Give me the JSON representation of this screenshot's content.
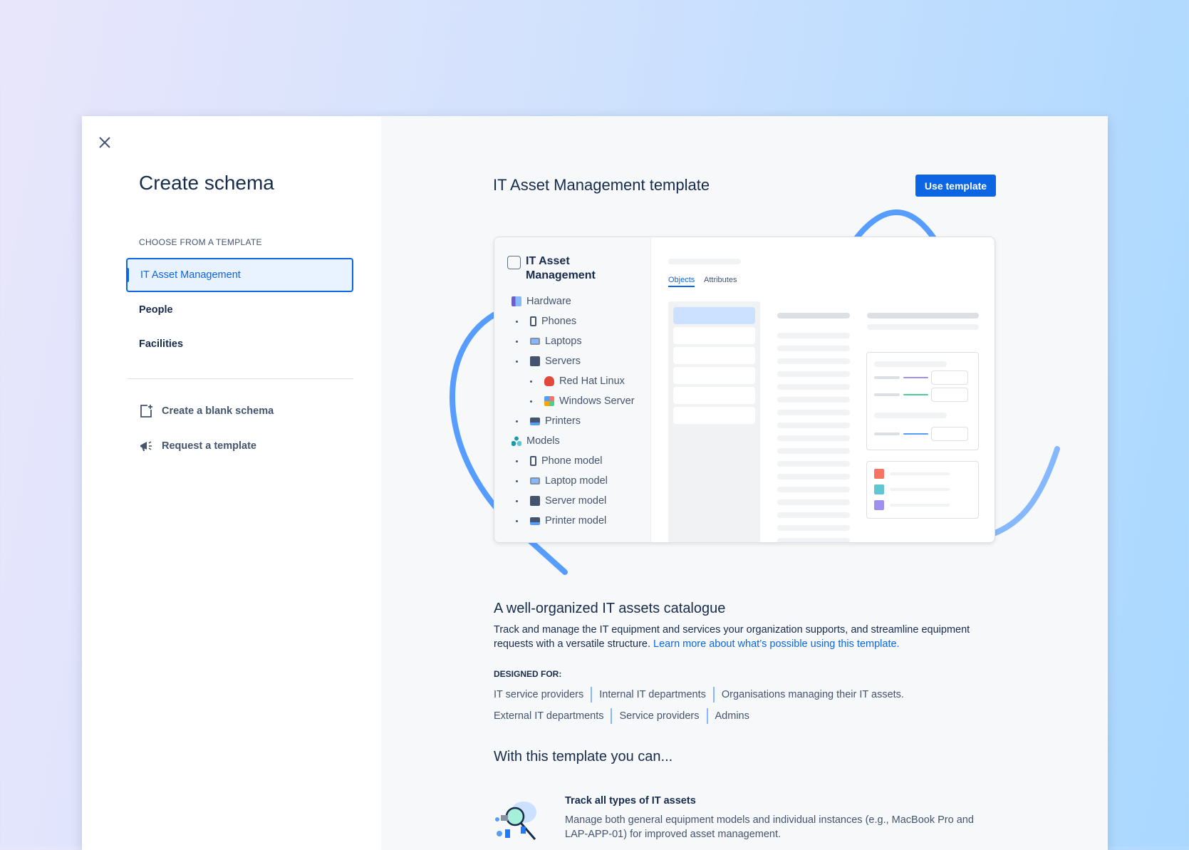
{
  "sidebar": {
    "title": "Create schema",
    "section_label": "CHOOSE FROM A TEMPLATE",
    "templates": [
      {
        "label": "IT Asset Management",
        "selected": true
      },
      {
        "label": "People",
        "selected": false
      },
      {
        "label": "Facilities",
        "selected": false
      }
    ],
    "actions": [
      {
        "label": "Create a blank schema",
        "icon": "add-page-icon"
      },
      {
        "label": "Request a template",
        "icon": "megaphone-icon"
      }
    ]
  },
  "main": {
    "title": "IT Asset Management template",
    "use_button": "Use template",
    "preview": {
      "title": "IT Asset Management",
      "tabs": [
        "Objects",
        "Attributes"
      ],
      "tree": [
        {
          "label": "Hardware",
          "level": 0,
          "icon": "hardware-icon"
        },
        {
          "label": "Phones",
          "level": 1,
          "icon": "phone-icon"
        },
        {
          "label": "Laptops",
          "level": 1,
          "icon": "laptop-icon"
        },
        {
          "label": "Servers",
          "level": 1,
          "icon": "server-icon"
        },
        {
          "label": "Red Hat Linux",
          "level": 2,
          "icon": "redhat-icon"
        },
        {
          "label": "Windows Server",
          "level": 2,
          "icon": "windows-icon"
        },
        {
          "label": "Printers",
          "level": 1,
          "icon": "printer-icon"
        },
        {
          "label": "Models",
          "level": 0,
          "icon": "models-icon"
        },
        {
          "label": "Phone model",
          "level": 1,
          "icon": "phone-icon"
        },
        {
          "label": "Laptop model",
          "level": 1,
          "icon": "laptop-icon"
        },
        {
          "label": "Server model",
          "level": 1,
          "icon": "server-icon"
        },
        {
          "label": "Printer model",
          "level": 1,
          "icon": "printer-icon"
        }
      ],
      "swatch_colors": [
        "#f87462",
        "#60c6d2",
        "#9f8fef"
      ]
    },
    "heading": "A well-organized IT assets catalogue",
    "description": "Track and manage the IT equipment and services your organization supports, and streamline equipment requests with a versatile structure.",
    "learn_more": "Learn more about what’s possible using this template.",
    "designed_for_label": "DESIGNED FOR:",
    "designed_for_row1": [
      "IT service providers",
      "Internal IT departments",
      "Organisations managing their IT assets."
    ],
    "designed_for_row2": [
      "External IT departments",
      "Service providers",
      "Admins"
    ],
    "features_heading": "With this template you can...",
    "features": [
      {
        "title": "Track all types of IT assets",
        "description": "Manage both general equipment models and individual instances (e.g., MacBook Pro and LAP-APP-01) for improved asset management."
      }
    ]
  },
  "colors": {
    "accent": "#0c66e4",
    "decor_line": "#579dff"
  }
}
